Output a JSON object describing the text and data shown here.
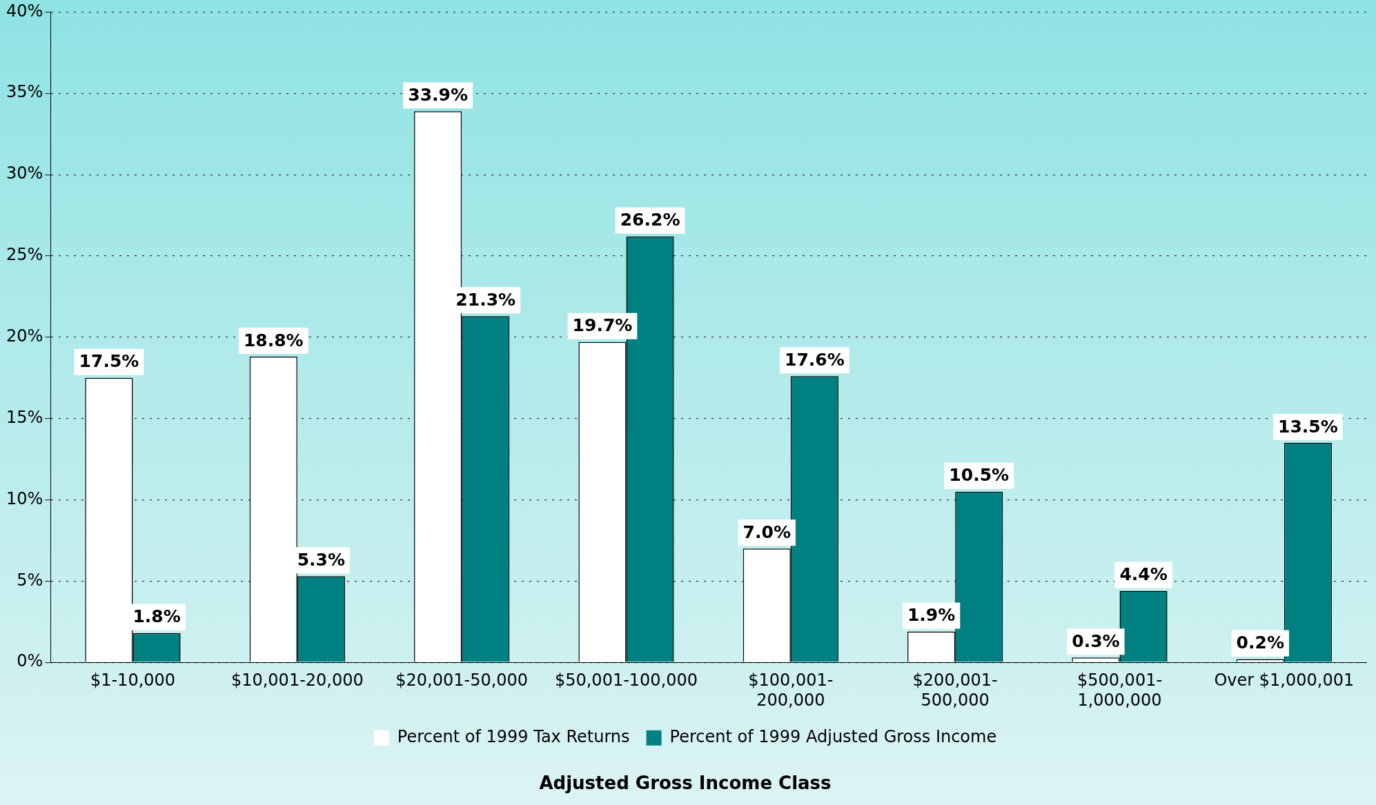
{
  "chart_data": {
    "type": "bar",
    "xlabel": "Adjusted Gross Income Class",
    "categories": [
      "$1-10,000",
      "$10,001-20,000",
      "$20,001-50,000",
      "$50,001-100,000",
      "$100,001-200,000",
      "$200,001-500,000",
      "$500,001-1,000,000",
      "Over $1,000,001"
    ],
    "series": [
      {
        "name": "Percent of 1999 Tax Returns",
        "color": "#ffffff",
        "values": [
          17.5,
          18.8,
          33.9,
          19.7,
          7.0,
          1.9,
          0.3,
          0.2
        ],
        "value_labels": [
          "17.5%",
          "18.8%",
          "33.9%",
          "19.7%",
          "7.0%",
          "1.9%",
          "0.3%",
          "0.2%"
        ]
      },
      {
        "name": "Percent of 1999 Adjusted Gross Income",
        "color": "#008080",
        "values": [
          1.8,
          5.3,
          21.3,
          26.2,
          17.6,
          10.5,
          4.4,
          13.5
        ],
        "value_labels": [
          "1.8%",
          "5.3%",
          "21.3%",
          "26.2%",
          "17.6%",
          "10.5%",
          "4.4%",
          "13.5%"
        ]
      }
    ],
    "ylim": [
      0,
      40
    ],
    "yticks": [
      {
        "value": 0,
        "label": "0%"
      },
      {
        "value": 5,
        "label": "5%"
      },
      {
        "value": 10,
        "label": "10%"
      },
      {
        "value": 15,
        "label": "15%"
      },
      {
        "value": 20,
        "label": "20%"
      },
      {
        "value": 25,
        "label": "25%"
      },
      {
        "value": 30,
        "label": "30%"
      },
      {
        "value": 35,
        "label": "35%"
      },
      {
        "value": 40,
        "label": "40%"
      }
    ],
    "grid": "y",
    "legend": "bottom"
  }
}
